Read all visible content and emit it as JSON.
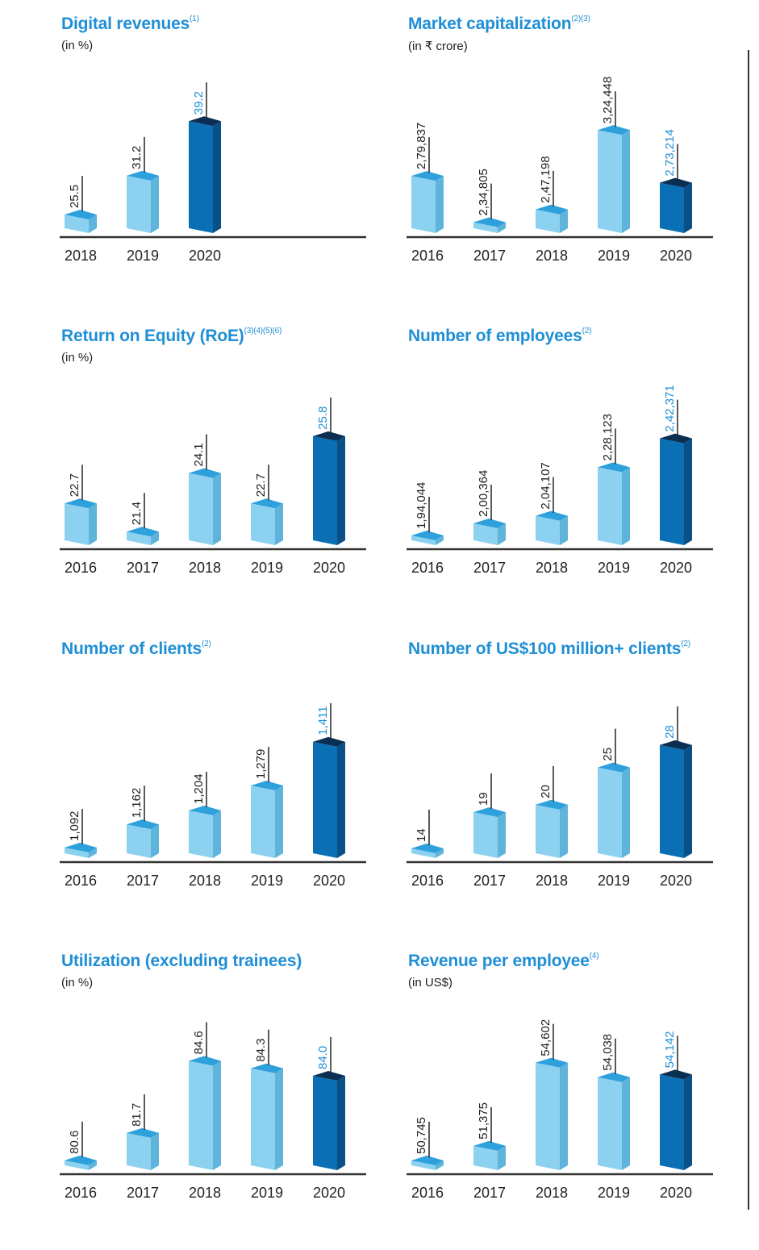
{
  "colors": {
    "title": "#1f8fd6",
    "bar_face": "#8dd1f0",
    "bar_side": "#5fb4db",
    "bar_top": "#2ea0dc",
    "hl_face": "#0a6fb5",
    "hl_side": "#0a4f86",
    "hl_top": "#0a2f52",
    "label_normal": "#222222",
    "label_highlight": "#1f8fd6",
    "axis": "#333333"
  },
  "chart_data": [
    {
      "id": "digital-revenues",
      "type": "bar",
      "title": "Digital revenues",
      "footnotes": "(1)",
      "unit": "(in %)",
      "categories": [
        "2018",
        "2019",
        "2020"
      ],
      "values": [
        25.5,
        31.2,
        39.2
      ],
      "labels": [
        "25.5",
        "31.2",
        "39.2"
      ],
      "highlight_index": 2,
      "ylim": [
        23.5,
        41.0
      ],
      "slots": 5
    },
    {
      "id": "market-capitalization",
      "type": "bar",
      "title": "Market capitalization",
      "footnotes": "(2)(3)",
      "unit": "(in ₹ crore)",
      "categories": [
        "2016",
        "2017",
        "2018",
        "2019",
        "2020"
      ],
      "values": [
        279837,
        234805,
        247198,
        324448,
        273214
      ],
      "labels": [
        "2,79,837",
        "2,34,805",
        "2,47,198",
        "3,24,448",
        "2,73,214"
      ],
      "highlight_index": 4,
      "ylim": [
        229000,
        345000
      ],
      "slots": 5
    },
    {
      "id": "return-on-equity",
      "type": "bar",
      "title": "Return on Equity (RoE)",
      "footnotes": "(3)(4)(5)(6)",
      "unit": "(in %)",
      "categories": [
        "2016",
        "2017",
        "2018",
        "2019",
        "2020"
      ],
      "values": [
        22.7,
        21.4,
        24.1,
        22.7,
        25.8
      ],
      "labels": [
        "22.7",
        "21.4",
        "24.1",
        "22.7",
        "25.8"
      ],
      "highlight_index": 4,
      "ylim": [
        21.0,
        26.5
      ],
      "slots": 5
    },
    {
      "id": "number-of-employees",
      "type": "bar",
      "title": "Number of employees",
      "footnotes": "(2)",
      "unit": "",
      "categories": [
        "2016",
        "2017",
        "2018",
        "2019",
        "2020"
      ],
      "values": [
        194044,
        200364,
        204107,
        228123,
        242371
      ],
      "labels": [
        "1,94,044",
        "2,00,364",
        "2,04,107",
        "2,28,123",
        "2,42,371"
      ],
      "highlight_index": 4,
      "ylim": [
        192000,
        251000
      ],
      "slots": 5
    },
    {
      "id": "number-of-clients",
      "type": "bar",
      "title": "Number of clients",
      "footnotes": "(2)",
      "unit": "",
      "categories": [
        "2016",
        "2017",
        "2018",
        "2019",
        "2020"
      ],
      "values": [
        1092,
        1162,
        1204,
        1279,
        1411
      ],
      "labels": [
        "1,092",
        "1,162",
        "1,204",
        "1,279",
        "1,411"
      ],
      "highlight_index": 4,
      "ylim": [
        1075,
        1435
      ],
      "slots": 5
    },
    {
      "id": "number-of-100m-clients",
      "type": "bar",
      "title": "Number of US$100 million+ clients",
      "footnotes": "(2)",
      "unit": "",
      "categories": [
        "2016",
        "2017",
        "2018",
        "2019",
        "2020"
      ],
      "values": [
        14,
        19,
        20,
        25,
        28
      ],
      "labels": [
        "14",
        "19",
        "20",
        "25",
        "28"
      ],
      "highlight_index": 4,
      "ylim": [
        13.5,
        29.5
      ],
      "slots": 5
    },
    {
      "id": "utilization",
      "type": "bar",
      "title": "Utilization (excluding trainees)",
      "footnotes": "",
      "unit": "(in %)",
      "categories": [
        "2016",
        "2017",
        "2018",
        "2019",
        "2020"
      ],
      "values": [
        80.6,
        81.7,
        84.6,
        84.3,
        84.0
      ],
      "labels": [
        "80.6",
        "81.7",
        "84.6",
        "84.3",
        "84.0"
      ],
      "highlight_index": 4,
      "ylim": [
        80.4,
        85.2
      ],
      "slots": 5
    },
    {
      "id": "revenue-per-employee",
      "type": "bar",
      "title": "Revenue per employee",
      "footnotes": "(4)",
      "unit": "(in US$)",
      "categories": [
        "2016",
        "2017",
        "2018",
        "2019",
        "2020"
      ],
      "values": [
        50745,
        51375,
        54602,
        54038,
        54142
      ],
      "labels": [
        "50,745",
        "51,375",
        "54,602",
        "54,038",
        "54,142"
      ],
      "highlight_index": 4,
      "ylim": [
        50620,
        55250
      ],
      "slots": 5
    }
  ]
}
